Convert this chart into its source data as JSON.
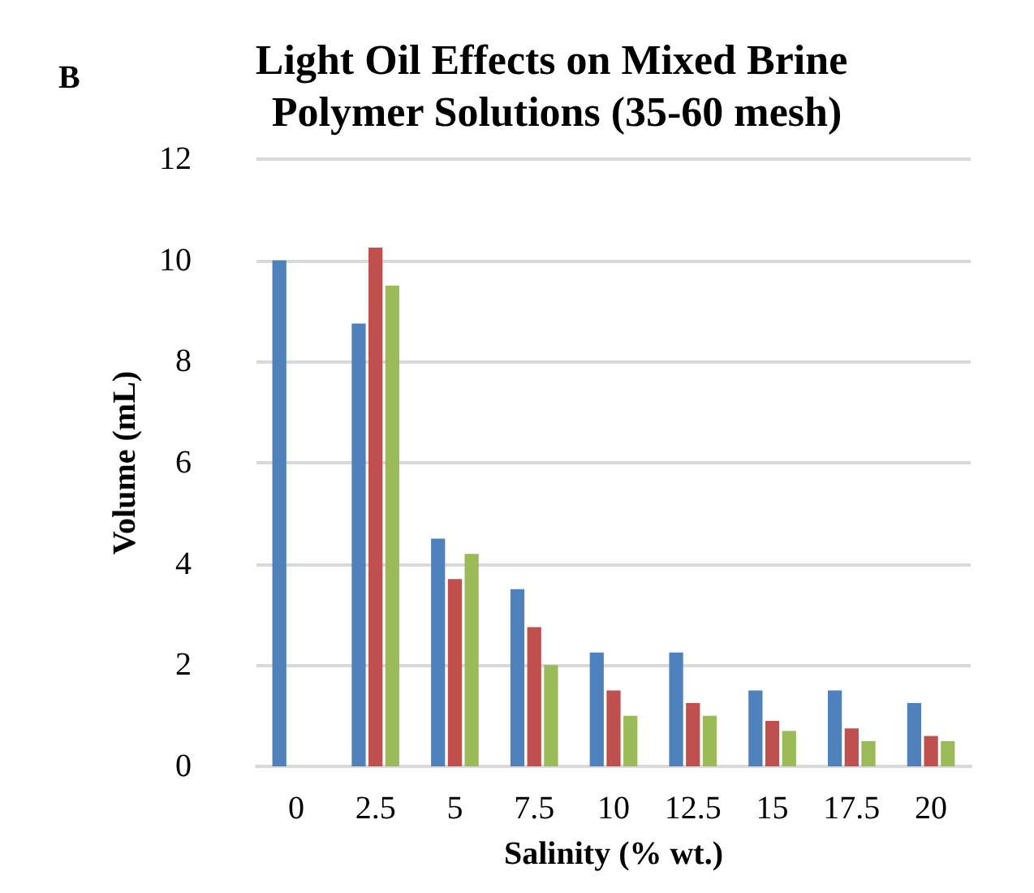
{
  "chart_data": {
    "type": "bar",
    "title": "Light Oil Effects on Mixed Brine Polymer Solutions (35-60 mesh)",
    "xlabel": "Salinity (% wt.)",
    "ylabel": "Volume (mL)",
    "annotations": [
      "B"
    ],
    "categories": [
      "0",
      "2.5",
      "5",
      "7.5",
      "10",
      "12.5",
      "15",
      "17.5",
      "20"
    ],
    "series": [
      {
        "color": "#4f81bd",
        "values": [
          10,
          8.75,
          4.5,
          3.5,
          2.25,
          2.25,
          1.5,
          1.5,
          1.25
        ]
      },
      {
        "color": "#c0504d",
        "values": [
          null,
          10.25,
          3.7,
          2.75,
          1.5,
          1.25,
          0.9,
          0.75,
          0.6
        ]
      },
      {
        "color": "#9bbb59",
        "values": [
          null,
          9.5,
          4.2,
          2,
          1,
          1,
          0.7,
          0.5,
          0.5
        ]
      }
    ],
    "ylim": [
      0,
      12
    ],
    "yticks": [
      0,
      2,
      4,
      6,
      8,
      10,
      12
    ],
    "grid": "y"
  }
}
